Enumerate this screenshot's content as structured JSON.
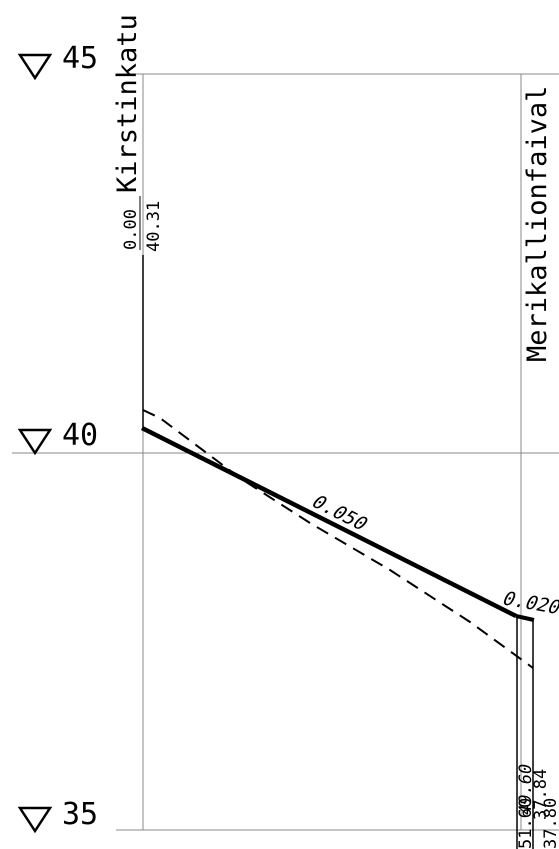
{
  "elevation_levels": [
    {
      "label": "45",
      "value": 45
    },
    {
      "label": "40",
      "value": 40
    },
    {
      "label": "35",
      "value": 35
    }
  ],
  "streets": {
    "start": "Kirstinkatu",
    "end": "Merikallionfaival"
  },
  "start_station": {
    "distance": "0.00",
    "elevation": "40.31"
  },
  "end_station": {
    "distance_top": "49.60",
    "distance_bottom": "51.60",
    "elevation_design": "37.84",
    "elevation_existing": "37.80"
  },
  "slopes": {
    "main": "0.050",
    "edge": "0.020"
  },
  "colors": {
    "grid": "#888888",
    "ink": "#000000",
    "background": "#ffffff"
  }
}
